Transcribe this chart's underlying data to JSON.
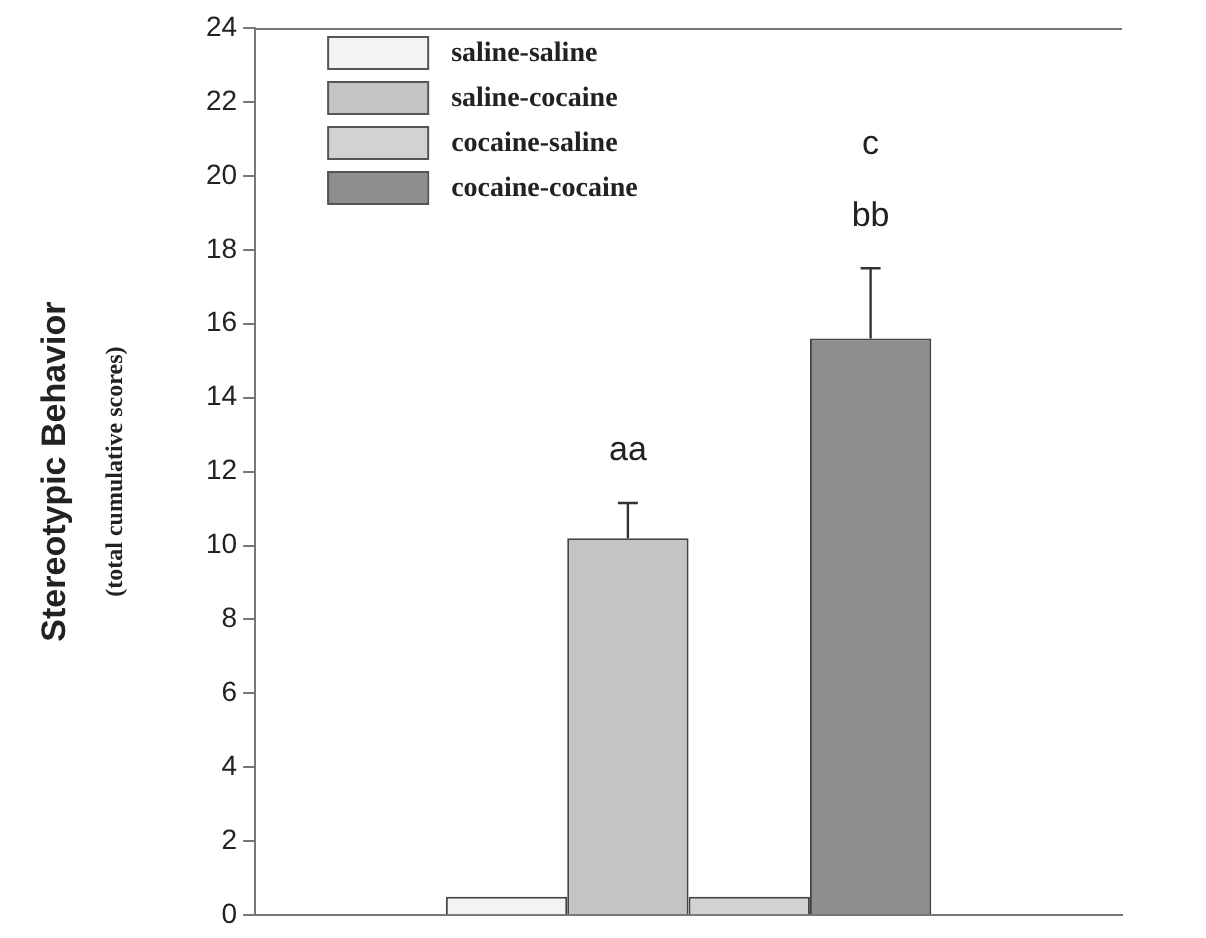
{
  "chart_data": {
    "type": "bar",
    "ylabel": "Stereotypic Behavior\n(total cumulative scores)",
    "categories": [
      null
    ],
    "series": [
      {
        "name": "saline-saline",
        "color": "#f4f4f4",
        "values": [
          0.5
        ]
      },
      {
        "name": "saline-cocaine",
        "color": "#c4c4c4",
        "values": [
          10.2
        ],
        "errors": [
          [
            10.2,
            11.15
          ]
        ]
      },
      {
        "name": "cocaine-saline",
        "color": "#d2d2d2",
        "values": [
          0.5
        ]
      },
      {
        "name": "cocaine-cocaine",
        "color": "#8e8e8e",
        "values": [
          15.6
        ],
        "errors": [
          [
            15.6,
            17.5
          ]
        ]
      }
    ],
    "annotations": [
      "aa",
      "c",
      "bb"
    ],
    "ylim": [
      0,
      24
    ],
    "yticks": [
      0,
      2,
      4,
      6,
      8,
      10,
      12,
      14,
      16,
      18,
      20,
      22,
      24
    ],
    "grid": false,
    "legend": "top left"
  }
}
